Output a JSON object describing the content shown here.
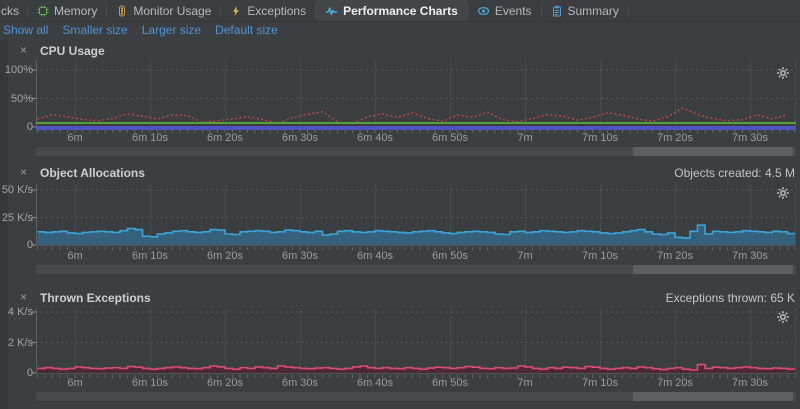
{
  "tabs": {
    "items": [
      {
        "label": "cks",
        "icon": "truncated-tab-icon",
        "selected": false
      },
      {
        "label": "Memory",
        "icon": "memory-icon",
        "selected": false
      },
      {
        "label": "Monitor Usage",
        "icon": "traffic-light-icon",
        "selected": false
      },
      {
        "label": "Exceptions",
        "icon": "lightning-icon",
        "selected": false
      },
      {
        "label": "Performance Charts",
        "icon": "pulse-icon",
        "selected": true
      },
      {
        "label": "Events",
        "icon": "eye-icon",
        "selected": false
      },
      {
        "label": "Summary",
        "icon": "clipboard-icon",
        "selected": false
      }
    ]
  },
  "toolbar": {
    "links": [
      {
        "label": "Show all"
      },
      {
        "label": "Smaller size"
      },
      {
        "label": "Larger size"
      },
      {
        "label": "Default size"
      }
    ]
  },
  "colors": {
    "link": "#4f94d8",
    "panel_bg": "#3c3f41",
    "cpu_line": "#cc4b40",
    "cpu_green": "#56a03c",
    "cpu_band": "#5054c2",
    "alloc_fill": "#35617c",
    "alloc_edge": "#3aa5d9",
    "exc_fill": "#4e2837",
    "exc_edge": "#da4d71"
  },
  "time_axis_labels": [
    "6m",
    "6m 10s",
    "6m 20s",
    "6m 30s",
    "6m 40s",
    "6m 50s",
    "7m",
    "7m 10s",
    "7m 20s",
    "7m 30s"
  ],
  "chart_data": [
    {
      "id": "cpu",
      "type": "line",
      "title": "CPU Usage",
      "ylabel": "percent",
      "ylim": [
        0,
        117
      ],
      "y_ticks": [
        {
          "label": "100%",
          "value": 100
        },
        {
          "label": "50%",
          "value": 50
        },
        {
          "label": "0",
          "value": 0
        }
      ],
      "series": [
        {
          "name": "cpu-usage-dotted",
          "type": "dotted",
          "color": "#cc4b40",
          "x_start_s": 355,
          "x_step_s": 2,
          "values": [
            14,
            22,
            18,
            13,
            11,
            15,
            23,
            19,
            14,
            21,
            20,
            8,
            11,
            14,
            18,
            13,
            7,
            16,
            22,
            27,
            9,
            6,
            18,
            23,
            17,
            25,
            15,
            10,
            21,
            17,
            26,
            13,
            9,
            15,
            22,
            19,
            12,
            17,
            25,
            21,
            14,
            10,
            18,
            33,
            22,
            15,
            11,
            13,
            21,
            14,
            22
          ]
        },
        {
          "name": "cpu-green-line",
          "type": "hline",
          "color": "#56a03c",
          "value": 7
        },
        {
          "name": "cpu-baseline-band",
          "type": "band",
          "color": "#5054c2"
        }
      ]
    },
    {
      "id": "allocations",
      "type": "area",
      "title": "Object Allocations",
      "info": "Objects created: 4.5 M",
      "ylabel": "K/s",
      "ylim": [
        0,
        55
      ],
      "y_ticks": [
        {
          "label": "50 K/s",
          "value": 50
        },
        {
          "label": "25 K/s",
          "value": 25
        },
        {
          "label": "0",
          "value": 0
        }
      ],
      "series": [
        {
          "name": "object-allocations-rate",
          "type": "steps",
          "color": "#3aa5d9",
          "fill": "#35617c",
          "x_start_s": 355,
          "x_step_s": 1,
          "values": [
            12,
            11.5,
            12,
            12.5,
            11,
            10.5,
            11.5,
            12,
            12.5,
            12,
            11.5,
            13,
            15,
            14,
            8,
            7.5,
            10,
            11,
            12.5,
            13,
            12,
            11.5,
            12,
            14,
            13.5,
            10,
            9.5,
            12,
            12.5,
            13,
            12.5,
            11.5,
            12,
            13.5,
            13,
            12,
            11.5,
            12.5,
            9,
            10,
            12.5,
            13,
            12,
            11.5,
            12,
            13,
            12.5,
            12,
            11.5,
            11,
            12,
            12.5,
            13,
            12,
            11,
            10.5,
            11.5,
            12,
            12.5,
            12,
            11.5,
            10,
            9.5,
            12,
            12.5,
            11.5,
            12,
            13,
            12.5,
            12,
            11.5,
            12,
            13,
            12.5,
            12,
            11,
            10.5,
            11,
            12,
            13,
            14,
            12,
            10,
            9.5,
            11,
            7,
            6.5,
            12.5,
            18,
            10,
            12.5,
            12,
            11.5,
            12,
            13,
            12.5,
            12,
            11.5,
            12.5,
            12,
            10.5
          ]
        }
      ]
    },
    {
      "id": "exceptions",
      "type": "area",
      "title": "Thrown Exceptions",
      "info": "Exceptions thrown: 65 K",
      "ylabel": "K/s",
      "ylim": [
        0,
        4.3
      ],
      "y_ticks": [
        {
          "label": "4 K/s",
          "value": 4
        },
        {
          "label": "2 K/s",
          "value": 2
        },
        {
          "label": "0",
          "value": 0
        }
      ],
      "series": [
        {
          "name": "thrown-exceptions-rate",
          "type": "steps",
          "color": "#da4d71",
          "fill": "#4e2837",
          "x_start_s": 355,
          "x_step_s": 1,
          "values": [
            0.3,
            0.35,
            0.3,
            0.25,
            0.3,
            0.4,
            0.35,
            0.3,
            0.28,
            0.32,
            0.35,
            0.3,
            0.42,
            0.38,
            0.3,
            0.25,
            0.3,
            0.35,
            0.4,
            0.35,
            0.3,
            0.28,
            0.35,
            0.45,
            0.4,
            0.3,
            0.25,
            0.35,
            0.3,
            0.4,
            0.35,
            0.3,
            0.45,
            0.4,
            0.35,
            0.3,
            0.28,
            0.32,
            0.35,
            0.3,
            0.25,
            0.3,
            0.4,
            0.45,
            0.35,
            0.3,
            0.35,
            0.3,
            0.28,
            0.35,
            0.3,
            0.25,
            0.32,
            0.38,
            0.35,
            0.3,
            0.35,
            0.42,
            0.38,
            0.3,
            0.28,
            0.35,
            0.3,
            0.32,
            0.45,
            0.4,
            0.3,
            0.25,
            0.35,
            0.3,
            0.38,
            0.35,
            0.3,
            0.42,
            0.38,
            0.3,
            0.25,
            0.3,
            0.35,
            0.3,
            0.4,
            0.35,
            0.28,
            0.22,
            0.3,
            0.35,
            0.25,
            0.2,
            0.55,
            0.3,
            0.38,
            0.35,
            0.3,
            0.35,
            0.4,
            0.35,
            0.3,
            0.28,
            0.32,
            0.3,
            0.25
          ]
        }
      ]
    }
  ]
}
